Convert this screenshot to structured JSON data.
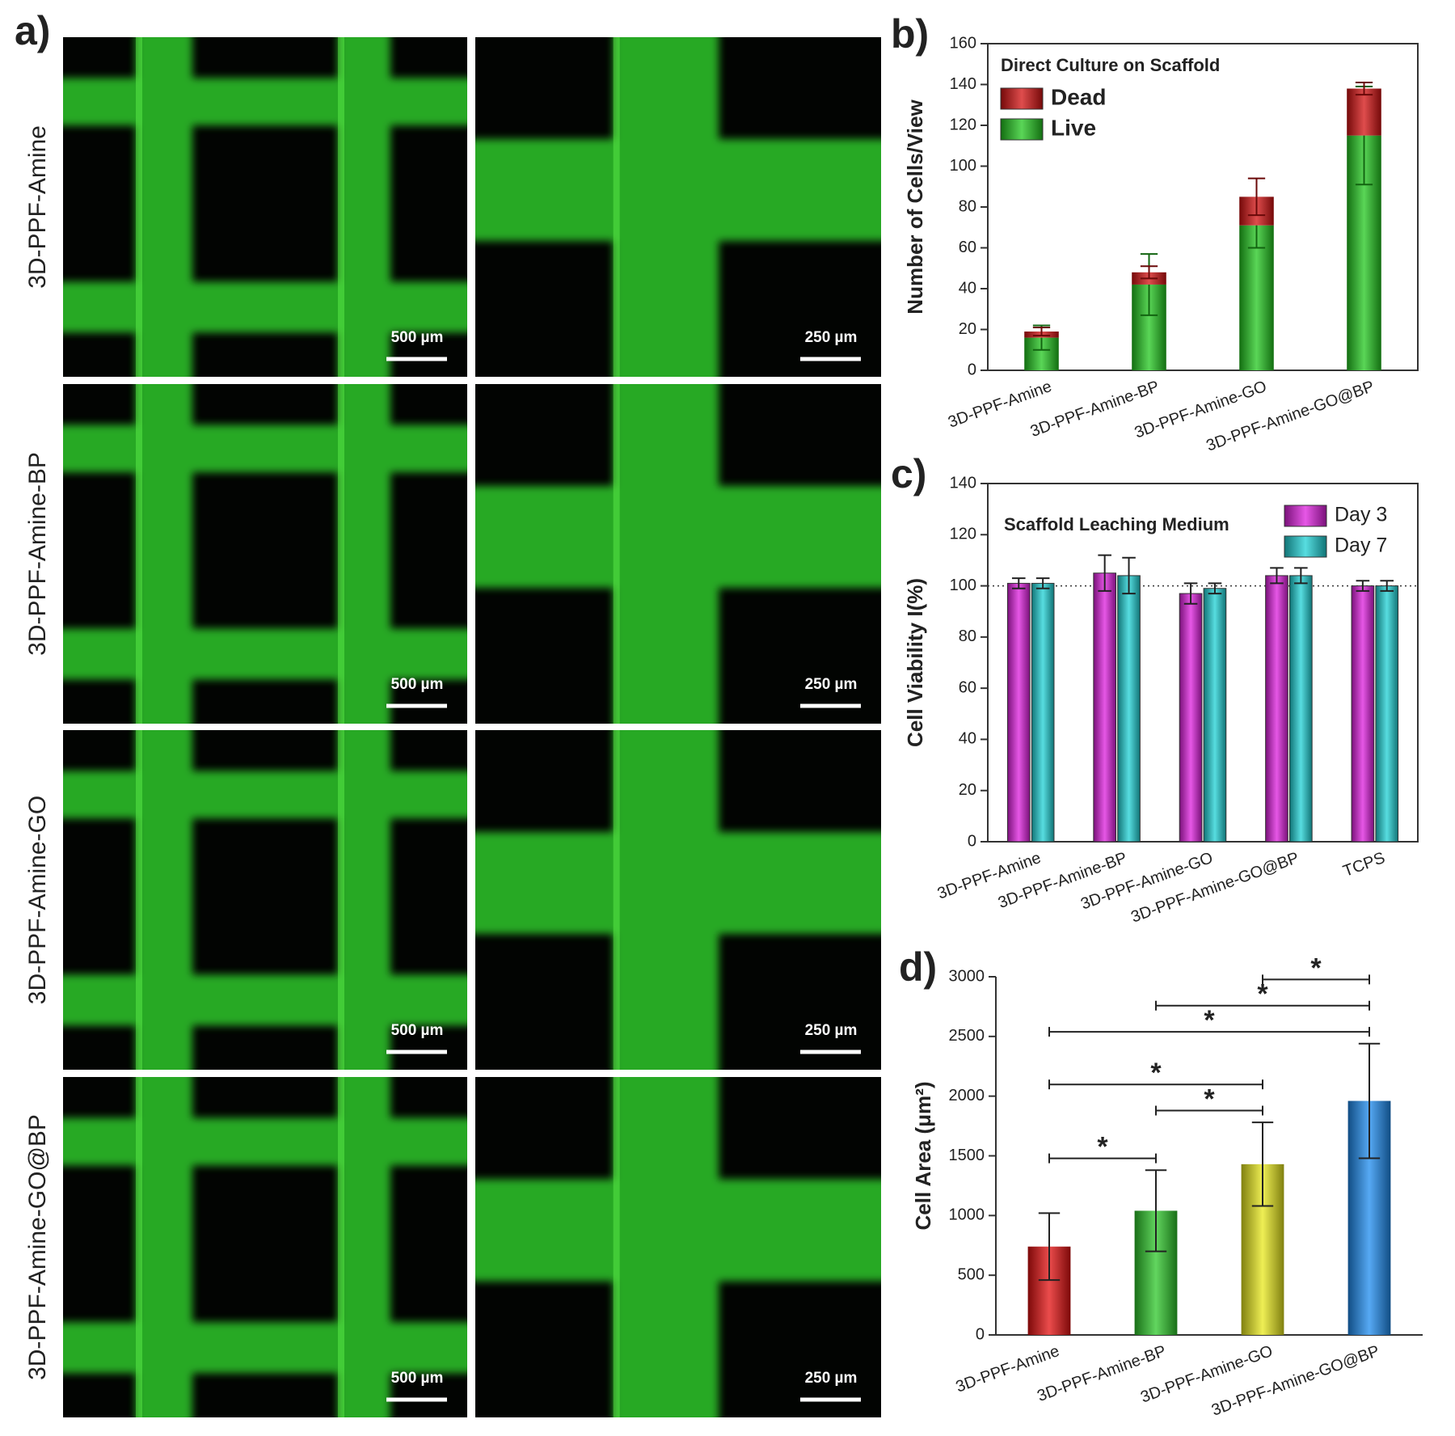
{
  "panel_a": {
    "label": "a)",
    "rows": [
      {
        "label": "3D-PPF-Amine",
        "scale_bars": [
          "500 µm",
          "250 µm"
        ]
      },
      {
        "label": "3D-PPF-Amine-BP",
        "scale_bars": [
          "500 µm",
          "250 µm"
        ]
      },
      {
        "label": "3D-PPF-Amine-GO",
        "scale_bars": [
          "500 µm",
          "250 µm"
        ]
      },
      {
        "label": "3D-PPF-Amine-GO@BP",
        "scale_bars": [
          "500 µm",
          "250 µm"
        ]
      }
    ]
  },
  "chart_data": [
    {
      "type": "bar",
      "label": "b)",
      "stacked": true,
      "frame": true,
      "categories": [
        "3D-PPF-Amine",
        "3D-PPF-Amine-BP",
        "3D-PPF-Amine-GO",
        "3D-PPF-Amine-GO@BP"
      ],
      "series": [
        {
          "name": "Dead",
          "color": "#d41111",
          "values": [
            3,
            6,
            14,
            23
          ],
          "errors": [
            2,
            3,
            9,
            3
          ]
        },
        {
          "name": "Live",
          "color": "#23c81f",
          "values": [
            16,
            42,
            71,
            115
          ],
          "errors": [
            6,
            15,
            11,
            24
          ]
        }
      ],
      "ylim": [
        0,
        160
      ],
      "yticks": [
        0,
        20,
        40,
        60,
        80,
        100,
        120,
        140,
        160
      ],
      "ylabel": "Number of Cells/View",
      "legend_title": "Direct Culture on Scaffold",
      "legend": "upper left"
    },
    {
      "type": "bar",
      "label": "c)",
      "stacked": false,
      "frame": true,
      "categories": [
        "3D-PPF-Amine",
        "3D-PPF-Amine-BP",
        "3D-PPF-Amine-GO",
        "3D-PPF-Amine-GO@BP",
        "TCPS"
      ],
      "series": [
        {
          "name": "Day 3",
          "color": "#dd1fdd",
          "values": [
            101,
            105,
            97,
            104,
            100
          ],
          "errors": [
            2,
            7,
            4,
            3,
            2
          ]
        },
        {
          "name": "Day 7",
          "color": "#1fd2d6",
          "values": [
            101,
            104,
            99,
            104,
            100
          ],
          "errors": [
            2,
            7,
            2,
            3,
            2
          ]
        }
      ],
      "ylim": [
        0,
        140
      ],
      "yticks": [
        0,
        20,
        40,
        60,
        80,
        100,
        120,
        140
      ],
      "ylabel": "Cell Viability I(%)",
      "annotation": "Scaffold Leaching Medium",
      "legend": "upper right",
      "reference_line": 100
    },
    {
      "type": "bar",
      "label": "d)",
      "frame": false,
      "categories": [
        "3D-PPF-Amine",
        "3D-PPF-Amine-BP",
        "3D-PPF-Amine-GO",
        "3D-PPF-Amine-GO@BP"
      ],
      "values": [
        740,
        1040,
        1430,
        1960
      ],
      "errors": [
        280,
        340,
        350,
        480
      ],
      "colors": [
        "#e41010",
        "#2ec82a",
        "#e8e81c",
        "#1e8cf0"
      ],
      "ylim": [
        0,
        3000
      ],
      "yticks": [
        0,
        500,
        1000,
        1500,
        2000,
        2500,
        3000
      ],
      "ylabel": "Cell Area (μm²)",
      "significance": [
        {
          "from": 0,
          "to": 1,
          "label": "*"
        },
        {
          "from": 1,
          "to": 2,
          "label": "*"
        },
        {
          "from": 0,
          "to": 2,
          "label": "*"
        },
        {
          "from": 0,
          "to": 3,
          "label": "*"
        },
        {
          "from": 1,
          "to": 3,
          "label": "*"
        },
        {
          "from": 2,
          "to": 3,
          "label": "*"
        }
      ]
    }
  ]
}
